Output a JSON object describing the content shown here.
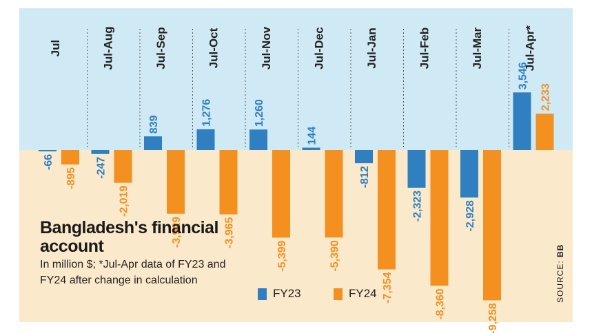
{
  "chart_data": {
    "type": "bar",
    "title": "Bangladesh's financial account",
    "subtitle": "In million $; *Jul-Apr data of FY23 and FY24 after change in calculation",
    "categories": [
      "Jul",
      "Jul-Aug",
      "Jul-Sep",
      "Jul-Oct",
      "Jul-Nov",
      "Jul-Dec",
      "Jul-Jan",
      "Jul-Feb",
      "Jul-Mar",
      "Jul-Apr*"
    ],
    "series": [
      {
        "name": "FY23",
        "color": "#2f7fc1",
        "values": [
          -66,
          -247,
          839,
          1276,
          1260,
          144,
          -812,
          -2323,
          -2928,
          3546
        ],
        "labels": [
          "-66",
          "-247",
          "839",
          "1,276",
          "1,260",
          "144",
          "-812",
          "-2,323",
          "-2,928",
          "3,546"
        ]
      },
      {
        "name": "FY24",
        "color": "#f39020",
        "values": [
          -895,
          -2019,
          -3929,
          -3965,
          -5399,
          -5390,
          -7354,
          -8360,
          -9258,
          2233
        ],
        "labels": [
          "-895",
          "-2,019",
          "-3,929",
          "-3,965",
          "-5,399",
          "-5,390",
          "-7,354",
          "-8,360",
          "-9,258",
          "2,233"
        ]
      }
    ],
    "source_label": "SOURCE: ",
    "source": "BB",
    "colors": {
      "positive_bg": "#cfe9f5",
      "negative_bg": "#fbe9cc",
      "divider": "#555555"
    }
  }
}
